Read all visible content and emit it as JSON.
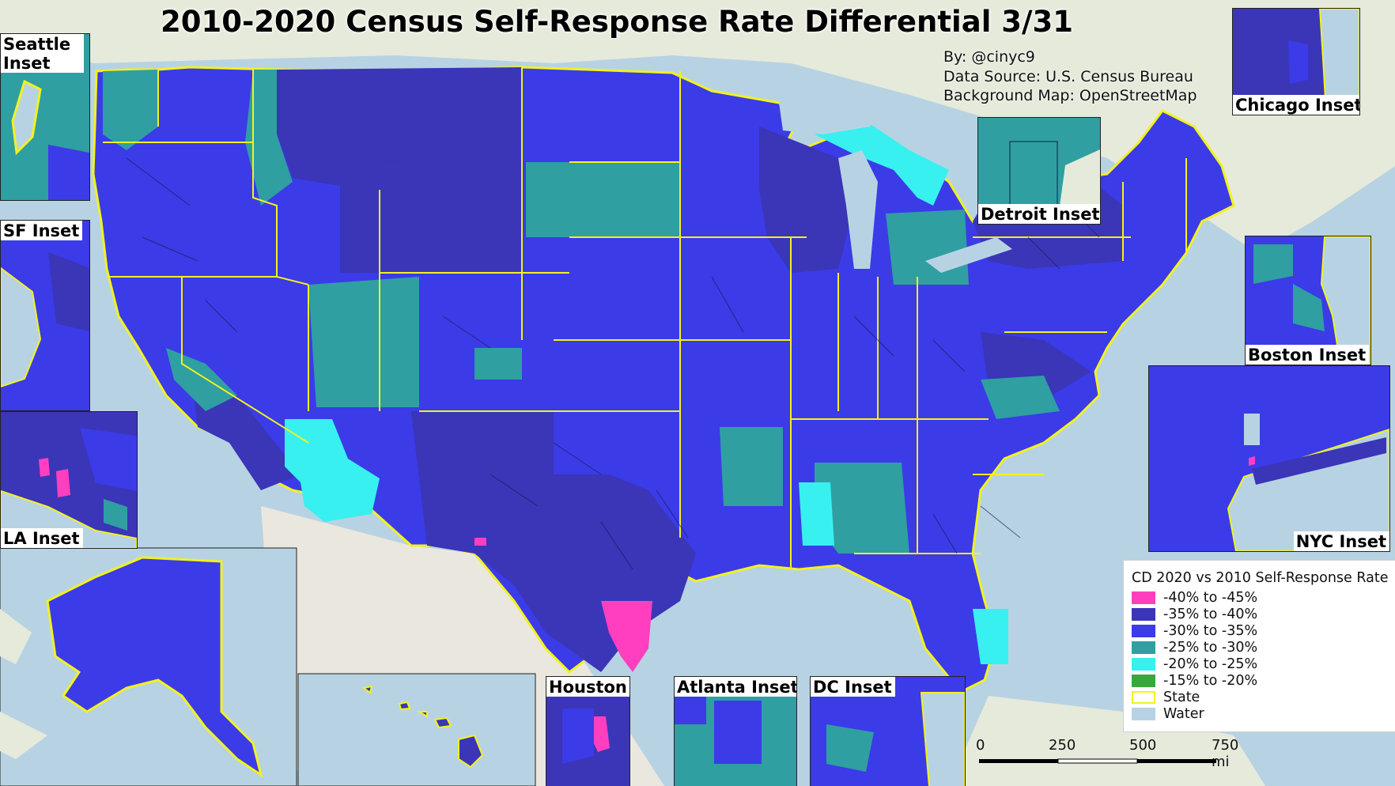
{
  "title": "2010-2020 Census Self-Response Rate Differential 3/31",
  "credits": {
    "author": "By: @cinyc9",
    "data_source": "Data Source: U.S. Census Bureau",
    "background": "Background Map: OpenStreetMap"
  },
  "insets": {
    "seattle": "Seattle Inset",
    "sf": "SF Inset",
    "la": "LA Inset",
    "chicago": "Chicago Inset",
    "detroit": "Detroit Inset",
    "boston": "Boston Inset",
    "nyc": "NYC Inset",
    "houston": "Houston",
    "atlanta": "Atlanta Inset",
    "dc": "DC Inset"
  },
  "legend": {
    "title": "CD 2020 vs 2010 Self-Response Rate",
    "items": [
      {
        "label": "-40% to -45%",
        "color": "#ff3fbf"
      },
      {
        "label": "-35% to -40%",
        "color": "#3b35b8"
      },
      {
        "label": "-30% to -35%",
        "color": "#3b3be8"
      },
      {
        "label": "-25% to -30%",
        "color": "#2f9fa2"
      },
      {
        "label": "-20% to -25%",
        "color": "#38f0ef"
      },
      {
        "label": "-15% to -20%",
        "color": "#37a93b"
      },
      {
        "label": "State",
        "color": "#ffffff",
        "outline": "#f2f21e"
      },
      {
        "label": "Water",
        "color": "#b7d3e3"
      }
    ]
  },
  "scale": {
    "ticks": [
      "0",
      "250",
      "500",
      "750 mi"
    ]
  }
}
